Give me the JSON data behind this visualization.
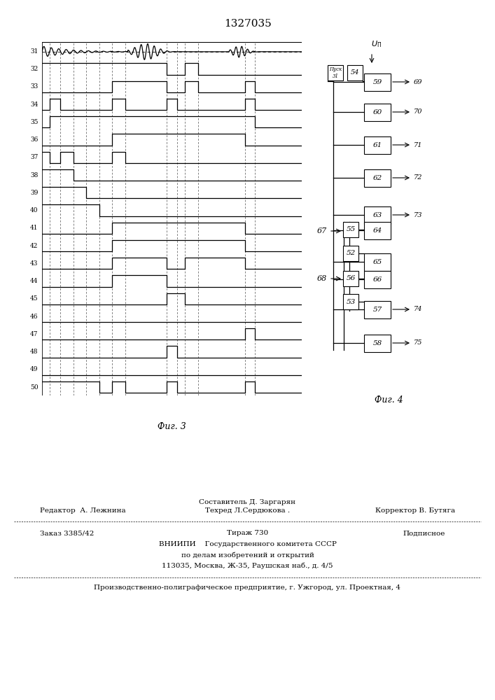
{
  "title": "1327035",
  "fig3_label": "Фиг. 3",
  "fig4_label": "Фиг. 4",
  "bg_color": "#ffffff",
  "footer": {
    "line1_center": "Составитель Д. Заргарян",
    "line2_left": "Редактор  А. Лежнина",
    "line2_center": "Техред Л.Сердюкова .",
    "line2_right": "Корректор В. Бутяга",
    "line3_left": "Заказ 3385/42",
    "line3_center": "Тираж 730",
    "line3_right": "Подписное",
    "line4": "ВНИИПИ    Государственного комитета СССР",
    "line5": "по делам изобретений и открытий",
    "line6": "113035, Москва, Ж-35, Раушская наб., д. 4/5",
    "line7": "Производственно-полиграфическое предприятие, г. Ужгород, ул. Проектная, 4"
  }
}
